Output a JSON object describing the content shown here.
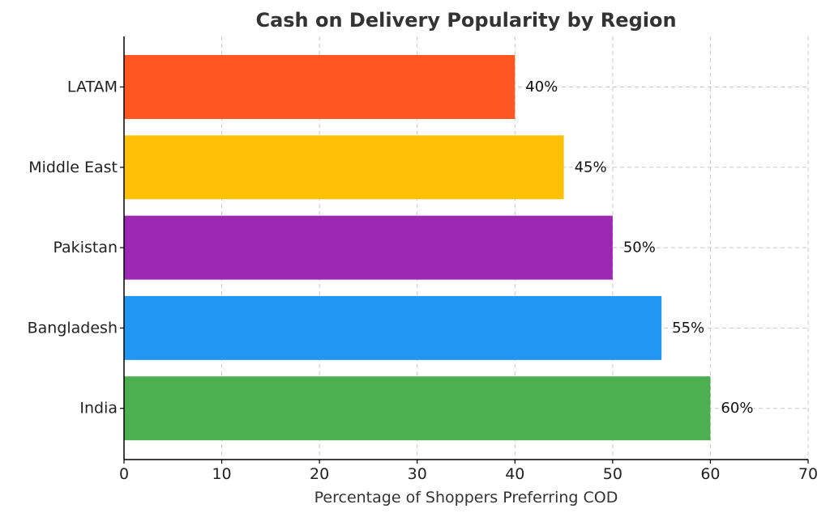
{
  "chart_data": {
    "type": "bar",
    "orientation": "horizontal",
    "title": "Cash on Delivery Popularity by Region",
    "xlabel": "Percentage of Shoppers Preferring COD",
    "ylabel": "",
    "categories": [
      "India",
      "Bangladesh",
      "Pakistan",
      "Middle East",
      "LATAM"
    ],
    "values": [
      60,
      55,
      50,
      45,
      40
    ],
    "data_labels": [
      "60%",
      "55%",
      "50%",
      "45%",
      "40%"
    ],
    "colors": [
      "#4CAF50",
      "#2196F3",
      "#9C27B0",
      "#FFC107",
      "#FF5722"
    ],
    "xlim": [
      0,
      70
    ],
    "xticks": [
      0,
      10,
      20,
      30,
      40,
      50,
      60,
      70
    ],
    "xtick_labels": [
      "0",
      "10",
      "20",
      "30",
      "40",
      "50",
      "60",
      "70"
    ],
    "grid": true,
    "grid_style": "dashed",
    "legend": "none"
  }
}
